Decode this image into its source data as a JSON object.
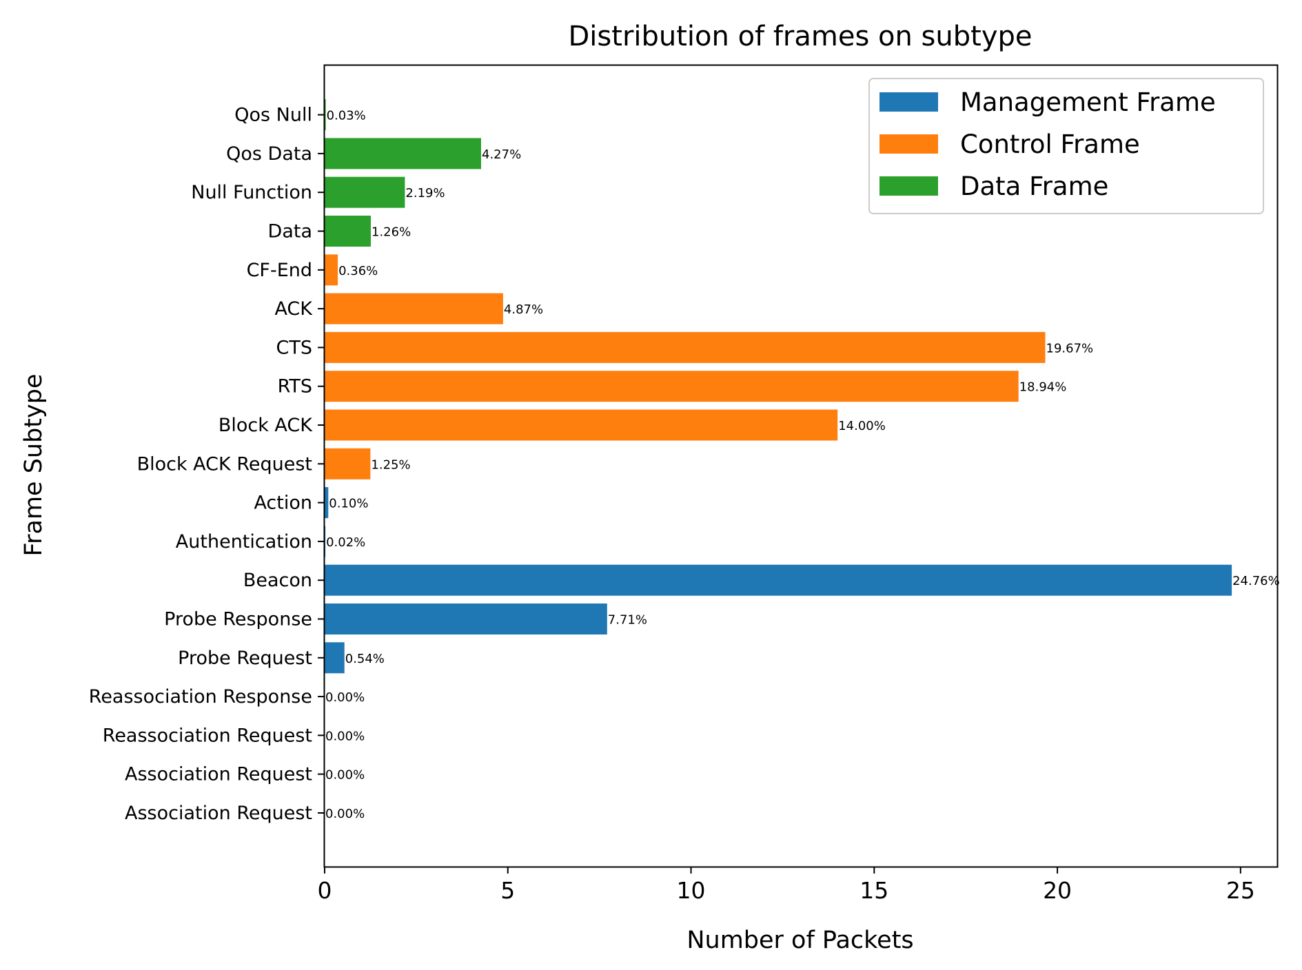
{
  "chart_data": {
    "type": "bar",
    "orientation": "horizontal",
    "title": "Distribution of frames on subtype",
    "xlabel": "Number of Packets",
    "ylabel": "Frame Subtype",
    "xlim": [
      0,
      26
    ],
    "xticks": [
      0,
      5,
      10,
      15,
      20,
      25
    ],
    "grid": false,
    "legend_position": "top-right",
    "series": [
      {
        "name": "Management Frame",
        "color": "#1f77b4"
      },
      {
        "name": "Control Frame",
        "color": "#ff7f0e"
      },
      {
        "name": "Data Frame",
        "color": "#2ca02c"
      }
    ],
    "categories": [
      "Association Request",
      "Association Request",
      "Reassociation Request",
      "Reassociation Response",
      "Probe Request",
      "Probe Response",
      "Beacon",
      "Authentication",
      "Action",
      "Block ACK Request",
      "Block ACK",
      "RTS",
      "CTS",
      "ACK",
      "CF-End",
      "Data",
      "Null Function",
      "Qos Data",
      "Qos Null"
    ],
    "values": [
      0.0,
      0.0,
      0.0,
      0.0,
      0.54,
      7.71,
      24.76,
      0.02,
      0.1,
      1.25,
      14.0,
      18.94,
      19.67,
      4.87,
      0.36,
      1.26,
      2.19,
      4.27,
      0.03
    ],
    "value_labels": [
      "0.00%",
      "0.00%",
      "0.00%",
      "0.00%",
      "0.54%",
      "7.71%",
      "24.76%",
      "0.02%",
      "0.10%",
      "1.25%",
      "14.00%",
      "18.94%",
      "19.67%",
      "4.87%",
      "0.36%",
      "1.26%",
      "2.19%",
      "4.27%",
      "0.03%"
    ],
    "series_index": [
      0,
      0,
      0,
      0,
      0,
      0,
      0,
      0,
      0,
      1,
      1,
      1,
      1,
      1,
      1,
      2,
      2,
      2,
      2
    ]
  }
}
